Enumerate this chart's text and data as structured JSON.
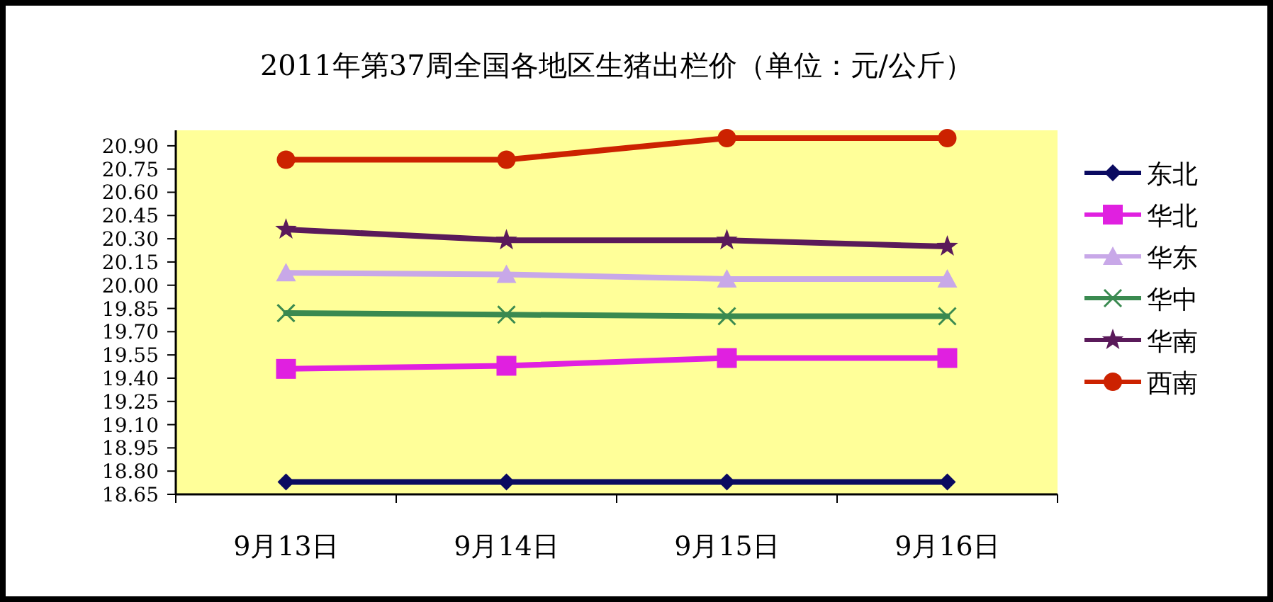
{
  "chart_data": {
    "type": "line",
    "title": "2011年第37周全国各地区生猪出栏价（单位：元/公斤）",
    "categories": [
      "9月13日",
      "9月14日",
      "9月15日",
      "9月16日"
    ],
    "series": [
      {
        "name": "东北",
        "color": "#0a0a60",
        "marker": "diamond",
        "values": [
          18.73,
          18.73,
          18.73,
          18.73
        ]
      },
      {
        "name": "华北",
        "color": "#e020e0",
        "marker": "square",
        "values": [
          19.46,
          19.48,
          19.53,
          19.53
        ]
      },
      {
        "name": "华东",
        "color": "#c8a8e8",
        "marker": "triangle",
        "values": [
          20.08,
          20.07,
          20.04,
          20.04
        ]
      },
      {
        "name": "华中",
        "color": "#3a8a50",
        "marker": "cross",
        "values": [
          19.82,
          19.81,
          19.8,
          19.8
        ]
      },
      {
        "name": "华南",
        "color": "#5a1a5a",
        "marker": "star",
        "values": [
          20.36,
          20.29,
          20.29,
          20.25
        ]
      },
      {
        "name": "西南",
        "color": "#cc2200",
        "marker": "circle",
        "values": [
          20.81,
          20.81,
          20.95,
          20.95
        ]
      }
    ],
    "ylim": [
      18.65,
      21.0
    ],
    "yticks": [
      {
        "value": 20.9,
        "label": "20.90"
      },
      {
        "value": 20.75,
        "label": "20.75"
      },
      {
        "value": 20.6,
        "label": "20.60"
      },
      {
        "value": 20.45,
        "label": "20.45"
      },
      {
        "value": 20.3,
        "label": "20.30"
      },
      {
        "value": 20.15,
        "label": "20.15"
      },
      {
        "value": 20.0,
        "label": "20.00"
      },
      {
        "value": 19.85,
        "label": "19.85"
      },
      {
        "value": 19.7,
        "label": "19.70"
      },
      {
        "value": 19.55,
        "label": "19.55"
      },
      {
        "value": 19.4,
        "label": "19.40"
      },
      {
        "value": 19.25,
        "label": "19.25"
      },
      {
        "value": 19.1,
        "label": "19.10"
      },
      {
        "value": 18.95,
        "label": "18.95"
      },
      {
        "value": 18.8,
        "label": "18.80"
      },
      {
        "value": 18.65,
        "label": "18.65"
      }
    ],
    "grid": false,
    "legend": "right"
  }
}
